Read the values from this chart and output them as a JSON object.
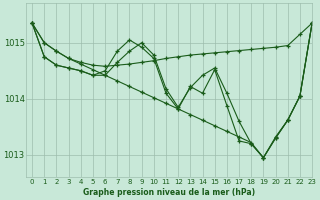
{
  "bg_color": "#c8e8d8",
  "plot_bg_color": "#c8e8d8",
  "line_color": "#1a5c1a",
  "grid_color": "#9dbdad",
  "xlabel": "Graphe pression niveau de la mer (hPa)",
  "ylim": [
    1012.6,
    1015.7
  ],
  "xlim": [
    -0.5,
    23
  ],
  "yticks": [
    1013,
    1014,
    1015
  ],
  "xticks": [
    0,
    1,
    2,
    3,
    4,
    5,
    6,
    7,
    8,
    9,
    10,
    11,
    12,
    13,
    14,
    15,
    16,
    17,
    18,
    19,
    20,
    21,
    22,
    23
  ],
  "series1": [
    1015.35,
    1015.0,
    1014.85,
    1014.72,
    1014.65,
    1014.6,
    1014.58,
    1014.6,
    1014.62,
    1014.65,
    1014.68,
    1014.72,
    1014.75,
    1014.78,
    1014.8,
    1014.82,
    1014.84,
    1014.86,
    1014.88,
    1014.9,
    1014.92,
    1014.95,
    1015.15,
    1015.35
  ],
  "series2": [
    1015.35,
    1015.0,
    1014.85,
    1014.72,
    1014.62,
    1014.52,
    1014.42,
    1014.32,
    1014.22,
    1014.12,
    1014.02,
    1013.92,
    1013.82,
    1013.72,
    1013.62,
    1013.52,
    1013.42,
    1013.32,
    1013.22,
    1012.95,
    1013.3,
    1013.62,
    1014.05,
    1015.35
  ],
  "series3": [
    1015.35,
    1014.75,
    1014.6,
    1014.55,
    1014.5,
    1014.42,
    1014.42,
    1014.65,
    1014.85,
    1015.0,
    1014.78,
    1014.18,
    1013.85,
    1014.2,
    1014.42,
    1014.55,
    1014.1,
    1013.6,
    1013.2,
    1012.95,
    1013.3,
    1013.62,
    1014.05,
    1015.35
  ],
  "series4": [
    1015.35,
    1014.75,
    1014.6,
    1014.55,
    1014.5,
    1014.42,
    1014.5,
    1014.85,
    1015.05,
    1014.92,
    1014.72,
    1014.1,
    1013.82,
    1014.22,
    1014.1,
    1014.52,
    1013.88,
    1013.25,
    1013.2,
    1012.95,
    1013.32,
    1013.62,
    1014.05,
    1015.35
  ]
}
